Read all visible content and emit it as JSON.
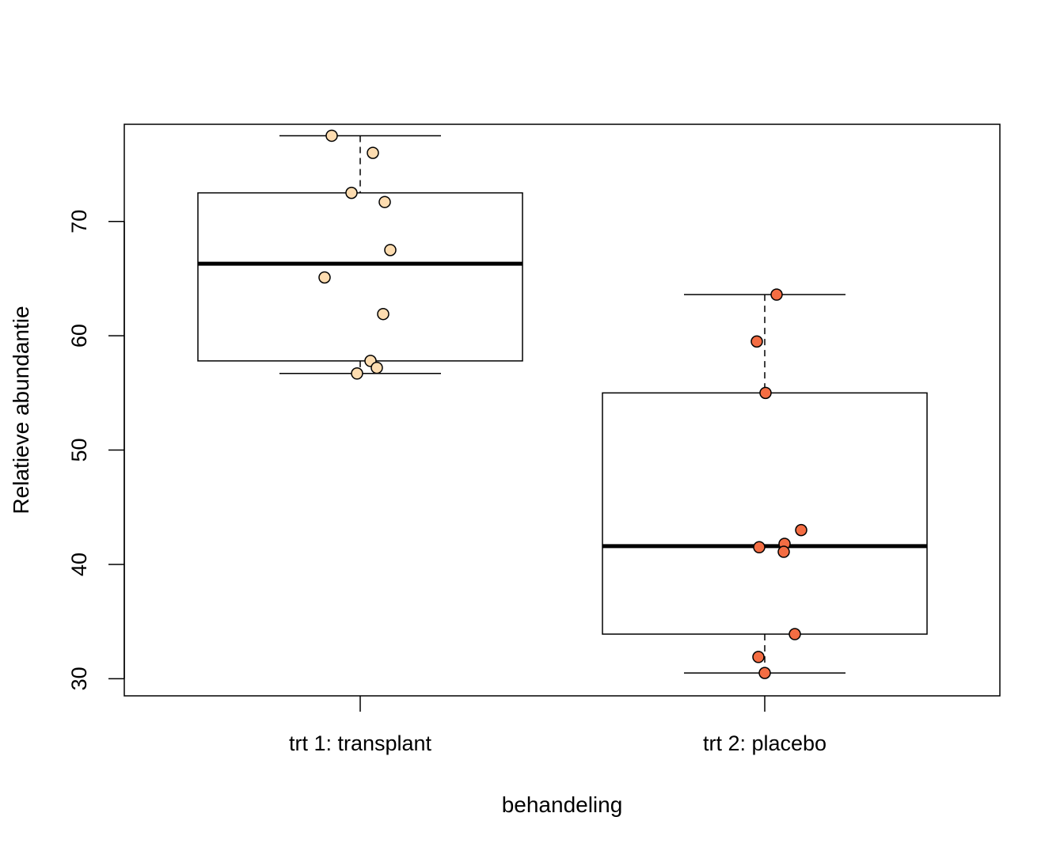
{
  "chart_data": {
    "type": "box",
    "xlabel": "behandeling",
    "ylabel": "Relatieve abundantie",
    "ylim": [
      28.5,
      78.5
    ],
    "yticks": [
      30,
      40,
      50,
      60,
      70
    ],
    "categories": [
      "trt 1: transplant",
      "trt 2: placebo"
    ],
    "boxes": [
      {
        "whisker_low": 56.7,
        "q1": 57.8,
        "median": 66.3,
        "q3": 72.5,
        "whisker_high": 77.5
      },
      {
        "whisker_low": 30.5,
        "q1": 33.9,
        "median": 41.6,
        "q3": 55.0,
        "whisker_high": 63.6
      }
    ],
    "series": [
      {
        "color": "#fddcb0",
        "values": [
          77.5,
          76.0,
          72.5,
          71.7,
          67.5,
          65.1,
          61.9,
          57.8,
          57.2,
          56.7
        ]
      },
      {
        "color": "#f46d43",
        "values": [
          63.6,
          59.5,
          55.0,
          43.0,
          41.8,
          41.5,
          41.1,
          33.9,
          31.9,
          30.5
        ]
      }
    ]
  }
}
